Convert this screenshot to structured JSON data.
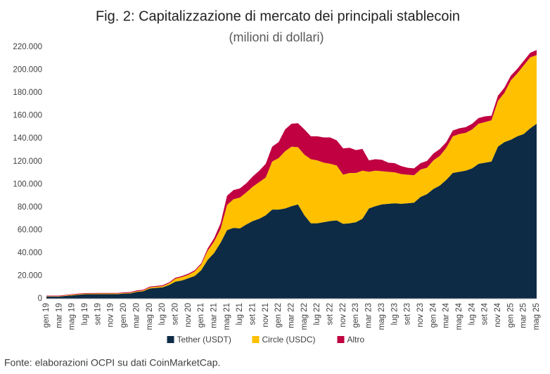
{
  "chart_data": {
    "type": "stacked_area",
    "title": "Fig. 2: Capitalizzazione di mercato dei principali stablecoin",
    "subtitle": "(milioni di dollari)",
    "source": "Fonte: elaborazioni OCPI su dati CoinMarketCap.",
    "categories": [
      "gen 19",
      null,
      "mar 19",
      null,
      "mag 19",
      null,
      "lug 19",
      null,
      "set 19",
      null,
      "nov 19",
      null,
      "gen 20",
      null,
      "mar 20",
      null,
      "mag 20",
      null,
      "lug 20",
      null,
      "set 20",
      null,
      "nov 20",
      null,
      "gen 21",
      null,
      "mar 21",
      null,
      "mag 21",
      null,
      "lug 21",
      null,
      "set 21",
      null,
      "nov 21",
      null,
      "gen 22",
      null,
      "mar 22",
      null,
      "mag 22",
      null,
      "lug 22",
      null,
      "set 22",
      null,
      "nov 22",
      null,
      "gen 23",
      null,
      "mar 23",
      null,
      "mag 23",
      null,
      "lug 23",
      null,
      "set 23",
      null,
      "nov 23",
      null,
      "gen 24",
      null,
      "mar 24",
      null,
      "mag 24",
      null,
      "lug 24",
      null,
      "set 24",
      null,
      "nov 24",
      null,
      "gen 25",
      null,
      "mar 25",
      null,
      "mag 25"
    ],
    "series": [
      {
        "name": "Tether (USDT)",
        "color": "#0d2b45",
        "values": [
          2000,
          2000,
          2000,
          2500,
          3000,
          3500,
          4000,
          4000,
          4100,
          4100,
          4100,
          4100,
          4500,
          4700,
          6000,
          6500,
          9000,
          9500,
          10000,
          12000,
          15000,
          16000,
          18000,
          20000,
          25000,
          34000,
          40000,
          49000,
          60000,
          62000,
          61500,
          65000,
          68000,
          70000,
          73000,
          78000,
          78000,
          79000,
          81000,
          82500,
          73000,
          66000,
          66000,
          67000,
          68000,
          68500,
          65500,
          66000,
          67000,
          70000,
          79000,
          81000,
          82500,
          83000,
          83500,
          83000,
          83500,
          84000,
          89000,
          91500,
          96000,
          99000,
          104000,
          110000,
          111000,
          112000,
          114000,
          118000,
          119000,
          120000,
          133000,
          137000,
          139000,
          142000,
          144000,
          149000,
          153000
        ]
      },
      {
        "name": "Circle (USDC)",
        "color": "#ffc000",
        "values": [
          300,
          300,
          300,
          400,
          500,
          500,
          500,
          500,
          500,
          500,
          500,
          500,
          500,
          500,
          600,
          700,
          900,
          1000,
          1000,
          1500,
          2500,
          3000,
          3000,
          4000,
          5000,
          8000,
          10000,
          12000,
          22000,
          25000,
          27000,
          28000,
          30000,
          32000,
          33000,
          42000,
          45000,
          50000,
          52000,
          50000,
          53000,
          56000,
          55000,
          52000,
          50000,
          48000,
          43000,
          44000,
          43000,
          42000,
          32000,
          31000,
          29000,
          28000,
          27000,
          26000,
          25000,
          24000,
          24000,
          23000,
          25000,
          26000,
          28000,
          32000,
          33000,
          33000,
          34000,
          35000,
          35500,
          36000,
          40000,
          43000,
          52000,
          55000,
          60000,
          62000,
          60000
        ]
      },
      {
        "name": "Altro",
        "color": "#c00040",
        "values": [
          500,
          500,
          500,
          500,
          500,
          500,
          500,
          500,
          500,
          500,
          500,
          500,
          600,
          600,
          700,
          700,
          700,
          700,
          800,
          800,
          900,
          900,
          1000,
          1000,
          1000,
          2000,
          3000,
          5000,
          8000,
          8000,
          8000,
          8000,
          9000,
          10000,
          12000,
          13000,
          14000,
          19000,
          20000,
          21000,
          22000,
          20000,
          21000,
          22000,
          23000,
          22000,
          23000,
          22000,
          20000,
          19000,
          10000,
          10000,
          10000,
          8000,
          8000,
          7000,
          6000,
          6000,
          5500,
          6000,
          6000,
          6000,
          5000,
          5000,
          5000,
          5000,
          5000,
          5000,
          5000,
          4000,
          4500,
          4500,
          4000,
          4000,
          4000,
          4000,
          4500
        ]
      }
    ],
    "ylim": [
      0,
      220000
    ],
    "yticks": [
      0,
      {
        "value": 20000,
        "label": "20.000"
      },
      {
        "value": 40000,
        "label": "40.000"
      },
      {
        "value": 60000,
        "label": "60.000"
      },
      {
        "value": 80000,
        "label": "80.000"
      },
      {
        "value": 100000,
        "label": "100.000"
      },
      {
        "value": 120000,
        "label": "120.000"
      },
      {
        "value": 140000,
        "label": "140.000"
      },
      {
        "value": 160000,
        "label": "160.000"
      },
      {
        "value": 180000,
        "label": "180.000"
      },
      {
        "value": 200000,
        "label": "200.000"
      },
      {
        "value": 220000,
        "label": "220.000"
      }
    ],
    "grid": false,
    "legend": "bottom"
  }
}
